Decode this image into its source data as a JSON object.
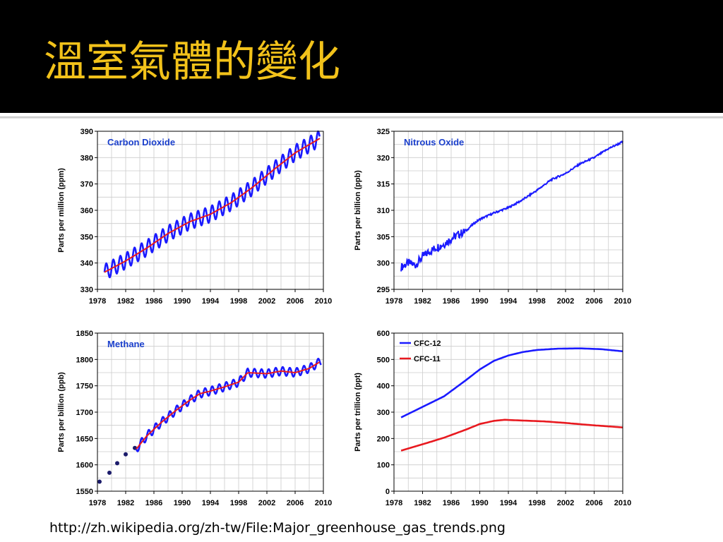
{
  "slide": {
    "title": "溫室氣體的變化",
    "source_url": "http://zh.wikipedia.org/zh-tw/File:Major_greenhouse_gas_trends.png"
  },
  "colors": {
    "blue": "#1a1aff",
    "red": "#e8191f",
    "title": "#f2c21a",
    "grid": "#cccccc",
    "dot": "#1b1b6b"
  },
  "chart_data": [
    {
      "type": "line",
      "title": "Carbon Dioxide",
      "ylabel": "Parts per million (ppm)",
      "xlabel": "",
      "xlim": [
        1978,
        2010
      ],
      "ylim": [
        330,
        390
      ],
      "xticks": [
        1978,
        1982,
        1986,
        1990,
        1994,
        1998,
        2002,
        2006,
        2010
      ],
      "yticks": [
        330,
        340,
        350,
        360,
        370,
        380,
        390
      ],
      "grid": true,
      "series": [
        {
          "style": "seasonal",
          "color": "#1a1aff",
          "amplitude": 3,
          "x": [
            1979,
            1982,
            1985,
            1988,
            1991,
            1994,
            1997,
            2000,
            2003,
            2006,
            2009.5
          ],
          "y": [
            336.5,
            340.8,
            345.7,
            351.2,
            355.6,
            358.5,
            363.0,
            368.8,
            375.5,
            381.8,
            387.3
          ]
        },
        {
          "style": "trend",
          "color": "#e8191f",
          "x": [
            1979,
            1982,
            1985,
            1988,
            1991,
            1994,
            1997,
            2000,
            2003,
            2006,
            2009.5
          ],
          "y": [
            336.5,
            340.8,
            345.7,
            351.2,
            355.6,
            358.5,
            363.0,
            368.8,
            375.5,
            381.8,
            387.3
          ]
        }
      ]
    },
    {
      "type": "line",
      "title": "Nitrous Oxide",
      "ylabel": "Parts per billion (ppb)",
      "xlabel": "",
      "xlim": [
        1978,
        2010
      ],
      "ylim": [
        295,
        325
      ],
      "xticks": [
        1978,
        1982,
        1986,
        1990,
        1994,
        1998,
        2002,
        2006,
        2010
      ],
      "yticks": [
        295,
        300,
        305,
        310,
        315,
        320,
        325
      ],
      "grid": true,
      "series": [
        {
          "style": "noisy",
          "color": "#1a1aff",
          "x": [
            1979,
            1980,
            1981,
            1982,
            1983,
            1984,
            1985,
            1986,
            1987,
            1988,
            1989,
            1990,
            1992,
            1994,
            1996,
            1998,
            2000,
            2002,
            2004,
            2006,
            2008,
            2010
          ],
          "y": [
            299.2,
            300.0,
            299.6,
            301.2,
            302.2,
            303.0,
            303.6,
            304.6,
            305.4,
            306.0,
            307.3,
            308.3,
            309.5,
            310.5,
            312.0,
            313.8,
            315.8,
            317.0,
            318.8,
            320.0,
            321.7,
            323.0
          ]
        }
      ]
    },
    {
      "type": "line",
      "title": "Methane",
      "ylabel": "Parts per billion (ppb)",
      "xlabel": "",
      "xlim": [
        1978,
        2010
      ],
      "ylim": [
        1550,
        1850
      ],
      "xticks": [
        1978,
        1982,
        1986,
        1990,
        1994,
        1998,
        2002,
        2006,
        2010
      ],
      "yticks": [
        1550,
        1600,
        1650,
        1700,
        1750,
        1800,
        1850
      ],
      "grid": true,
      "series": [
        {
          "style": "points",
          "color": "#1b1b6b",
          "x": [
            1978.3,
            1979.7,
            1980.8,
            1982.0,
            1983.3
          ],
          "y": [
            1568,
            1585,
            1603,
            1620,
            1632
          ]
        },
        {
          "style": "seasonal",
          "color": "#1a1aff",
          "amplitude": 8,
          "x": [
            1983.5,
            1985,
            1987,
            1989,
            1991,
            1992.5,
            1994,
            1996,
            1998,
            1999.3,
            2002,
            2004,
            2006,
            2008,
            2009.7
          ],
          "y": [
            1630,
            1655,
            1680,
            1702,
            1722,
            1735,
            1740,
            1748,
            1757,
            1775,
            1773,
            1778,
            1775,
            1783,
            1797
          ]
        },
        {
          "style": "trend",
          "color": "#e8191f",
          "x": [
            1983.5,
            1985,
            1987,
            1989,
            1991,
            1992.5,
            1994,
            1996,
            1998,
            1999.3,
            2002,
            2004,
            2006,
            2008,
            2009.7
          ],
          "y": [
            1630,
            1655,
            1680,
            1702,
            1722,
            1735,
            1740,
            1748,
            1757,
            1775,
            1773,
            1778,
            1775,
            1783,
            1797
          ]
        }
      ]
    },
    {
      "type": "line",
      "title": "",
      "ylabel": "Parts per trillion (ppt)",
      "xlabel": "",
      "xlim": [
        1978,
        2010
      ],
      "ylim": [
        0,
        600
      ],
      "xticks": [
        1978,
        1982,
        1986,
        1990,
        1994,
        1998,
        2002,
        2006,
        2010
      ],
      "yticks": [
        0,
        100,
        200,
        300,
        400,
        500,
        600
      ],
      "grid": true,
      "legend": "top-left",
      "series": [
        {
          "name": "CFC-12",
          "style": "smooth",
          "color": "#1a1aff",
          "x": [
            1979,
            1982,
            1985,
            1988,
            1990,
            1992,
            1994,
            1996,
            1998,
            2001,
            2004,
            2007,
            2010
          ],
          "y": [
            280,
            320,
            360,
            420,
            462,
            495,
            515,
            528,
            536,
            541,
            542,
            539,
            531
          ]
        },
        {
          "name": "CFC-11",
          "style": "smooth",
          "color": "#e8191f",
          "x": [
            1979,
            1982,
            1985,
            1988,
            1990,
            1992,
            1993.5,
            1996,
            1999,
            2002,
            2005,
            2008,
            2010
          ],
          "y": [
            154,
            178,
            203,
            233,
            255,
            267,
            271,
            268,
            265,
            259,
            252,
            246,
            242
          ]
        }
      ]
    }
  ]
}
